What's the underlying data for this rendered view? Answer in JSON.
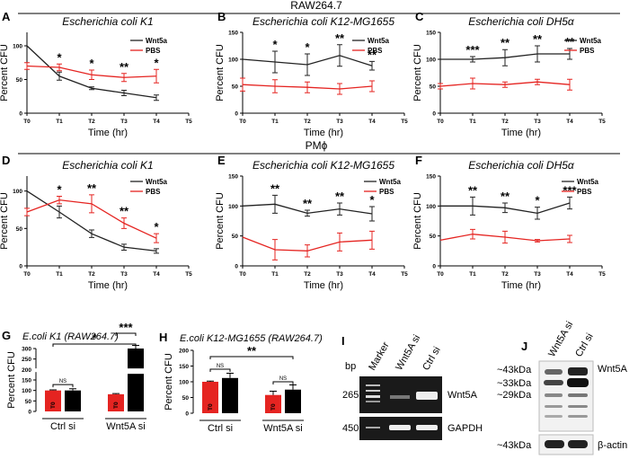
{
  "headers": {
    "raw": "RAW264.7",
    "pm": "PMϕ"
  },
  "line_panels": [
    {
      "letter": "A",
      "title": "Escherichia coli K1",
      "strain": "E. coli K1",
      "cell": "RAW264.7",
      "legend": [
        "Wnt5a",
        "PBS"
      ],
      "xlabel": "Time (hr)",
      "ylabel": "Percent CFU",
      "xticks": [
        "T0",
        "T1",
        "T2",
        "T3",
        "T4",
        "T5"
      ],
      "yticks": [
        "0",
        "50",
        "100"
      ],
      "ylim": [
        0,
        120
      ],
      "wnt": [
        100,
        55,
        37,
        30,
        23
      ],
      "wnt_err": [
        0,
        6,
        2,
        4,
        4
      ],
      "pbs": [
        70,
        68,
        57,
        53,
        55
      ],
      "pbs_err": [
        5,
        5,
        7,
        6,
        10
      ],
      "stars": [
        {
          "i": 1,
          "t": "*"
        },
        {
          "i": 2,
          "t": "*"
        },
        {
          "i": 3,
          "t": "**"
        },
        {
          "i": 4,
          "t": "*"
        }
      ]
    },
    {
      "letter": "B",
      "title": "Escherichia coli K12-MG1655",
      "strain": "E. coli K12-MG1655",
      "cell": "RAW264.7",
      "legend": [
        "Wnt5a",
        "PBS"
      ],
      "xlabel": "Time (hr)",
      "ylabel": "Percent CFU",
      "xticks": [
        "T0",
        "T1",
        "T2",
        "T3",
        "T4",
        "T5"
      ],
      "yticks": [
        "0",
        "50",
        "100",
        "150"
      ],
      "ylim": [
        0,
        150
      ],
      "wnt": [
        100,
        95,
        90,
        107,
        88
      ],
      "wnt_err": [
        0,
        20,
        20,
        20,
        8
      ],
      "pbs": [
        53,
        50,
        48,
        45,
        50
      ],
      "pbs_err": [
        12,
        12,
        10,
        10,
        10
      ],
      "stars": [
        {
          "i": 1,
          "t": "*"
        },
        {
          "i": 2,
          "t": "*"
        },
        {
          "i": 3,
          "t": "**"
        },
        {
          "i": 4,
          "t": "**"
        }
      ]
    },
    {
      "letter": "C",
      "title": "Escherichia coli DH5α",
      "strain": "E. coli DH5α",
      "cell": "RAW264.7",
      "legend": [
        "Wnt5a",
        "PBS"
      ],
      "xlabel": "Time (hr)",
      "ylabel": "Percent CFU",
      "xticks": [
        "T0",
        "T1",
        "T2",
        "T3",
        "T4",
        "T5"
      ],
      "yticks": [
        "0",
        "50",
        "100",
        "150"
      ],
      "ylim": [
        0,
        150
      ],
      "wnt": [
        100,
        100,
        103,
        110,
        110
      ],
      "wnt_err": [
        0,
        5,
        15,
        15,
        10
      ],
      "pbs": [
        50,
        55,
        53,
        58,
        53
      ],
      "pbs_err": [
        5,
        10,
        5,
        5,
        10
      ],
      "stars": [
        {
          "i": 1,
          "t": "***"
        },
        {
          "i": 2,
          "t": "**"
        },
        {
          "i": 3,
          "t": "**"
        },
        {
          "i": 4,
          "t": "**"
        }
      ]
    },
    {
      "letter": "D",
      "title": "Escherichia coli K1",
      "strain": "E. coli K1",
      "cell": "PMϕ",
      "legend": [
        "Wnt5a",
        "PBS"
      ],
      "xlabel": "Time (hr)",
      "ylabel": "Percent CFU",
      "xticks": [
        "T0",
        "T1",
        "T2",
        "T3",
        "T4",
        "T5"
      ],
      "yticks": [
        "0",
        "50",
        "100"
      ],
      "ylim": [
        0,
        120
      ],
      "wnt": [
        100,
        72,
        43,
        25,
        20
      ],
      "wnt_err": [
        0,
        8,
        5,
        4,
        3
      ],
      "pbs": [
        72,
        88,
        83,
        57,
        37
      ],
      "pbs_err": [
        5,
        5,
        12,
        7,
        6
      ],
      "stars": [
        {
          "i": 1,
          "t": "*"
        },
        {
          "i": 2,
          "t": "**"
        },
        {
          "i": 3,
          "t": "**"
        },
        {
          "i": 4,
          "t": "*"
        }
      ]
    },
    {
      "letter": "E",
      "title": "Escherichia coli K12-MG1655",
      "strain": "E. coli K12-MG1655",
      "cell": "PMϕ",
      "legend": [
        "Wnt5a",
        "PBS"
      ],
      "xlabel": "Time (hr)",
      "ylabel": "Percent CFU",
      "xticks": [
        "T0",
        "T1",
        "T2",
        "T3",
        "T4",
        "T5"
      ],
      "yticks": [
        "0",
        "50",
        "100",
        "150"
      ],
      "ylim": [
        0,
        150
      ],
      "wnt": [
        100,
        103,
        88,
        95,
        87
      ],
      "wnt_err": [
        0,
        15,
        5,
        10,
        12
      ],
      "pbs": [
        48,
        27,
        25,
        40,
        43
      ],
      "pbs_err": [
        0,
        17,
        10,
        15,
        15
      ],
      "stars": [
        {
          "i": 1,
          "t": "**"
        },
        {
          "i": 2,
          "t": "**"
        },
        {
          "i": 3,
          "t": "**"
        },
        {
          "i": 4,
          "t": "*"
        }
      ]
    },
    {
      "letter": "F",
      "title": "Escherichia coli DH5α",
      "strain": "E. coli DH5α",
      "cell": "PMϕ",
      "legend": [
        "Wnt5a",
        "PBS"
      ],
      "xlabel": "Time (hr)",
      "ylabel": "Percent CFU",
      "xticks": [
        "T0",
        "T1",
        "T2",
        "T3",
        "T4",
        "T5"
      ],
      "yticks": [
        "0",
        "50",
        "100",
        "150"
      ],
      "ylim": [
        0,
        150
      ],
      "wnt": [
        100,
        100,
        97,
        88,
        105
      ],
      "wnt_err": [
        0,
        15,
        8,
        10,
        10
      ],
      "pbs": [
        43,
        53,
        48,
        42,
        45
      ],
      "pbs_err": [
        0,
        8,
        10,
        2,
        6
      ],
      "stars": [
        {
          "i": 1,
          "t": "**"
        },
        {
          "i": 2,
          "t": "**"
        },
        {
          "i": 3,
          "t": "*"
        },
        {
          "i": 4,
          "t": "***"
        }
      ]
    }
  ],
  "bar_panels": [
    {
      "letter": "G",
      "title": "E.coli K1 (RAW264.7)",
      "ylabel": "Percent CFU",
      "yticks": [
        "0",
        "50",
        "100",
        "150",
        "200",
        "250",
        "300"
      ],
      "ylim": [
        0,
        300
      ],
      "broken_axis": true,
      "groups": [
        "Ctrl si",
        "Wnt5A si"
      ],
      "bar_labels": [
        "T0",
        "T3",
        "T0",
        "T3"
      ],
      "values": [
        100,
        100,
        82,
        300
      ],
      "errors": [
        3,
        8,
        3,
        15
      ],
      "ns": "NS",
      "inter_sig": "*",
      "within_sig": "***"
    },
    {
      "letter": "H",
      "title": "E.coli K12-MG1655 (RAW264.7)",
      "ylabel": "Percent CFU",
      "yticks": [
        "0",
        "50",
        "100",
        "150",
        "200"
      ],
      "ylim": [
        0,
        200
      ],
      "broken_axis": false,
      "groups": [
        "Ctrl si",
        "Wnt5A si"
      ],
      "bar_labels": [
        "T0",
        "T3",
        "T0",
        "T3"
      ],
      "values": [
        100,
        112,
        58,
        75
      ],
      "errors": [
        2,
        15,
        12,
        15
      ],
      "ns": [
        "NS",
        "NS"
      ],
      "inter_sig": "**"
    }
  ],
  "chart_data": [
    {
      "type": "line",
      "panel": "A",
      "title": "Escherichia coli K1",
      "xlabel": "Time (hr)",
      "ylabel": "Percent CFU",
      "ylim": [
        0,
        120
      ],
      "series": [
        {
          "name": "Wnt5a",
          "values": [
            100,
            55,
            37,
            30,
            23
          ]
        },
        {
          "name": "PBS",
          "values": [
            70,
            68,
            57,
            53,
            55
          ]
        }
      ],
      "categories": [
        "T0",
        "T1",
        "T2",
        "T3",
        "T4"
      ]
    },
    {
      "type": "line",
      "panel": "B",
      "title": "Escherichia coli K12-MG1655",
      "xlabel": "Time (hr)",
      "ylabel": "Percent CFU",
      "ylim": [
        0,
        150
      ],
      "series": [
        {
          "name": "Wnt5a",
          "values": [
            100,
            95,
            90,
            107,
            88
          ]
        },
        {
          "name": "PBS",
          "values": [
            53,
            50,
            48,
            45,
            50
          ]
        }
      ],
      "categories": [
        "T0",
        "T1",
        "T2",
        "T3",
        "T4"
      ]
    },
    {
      "type": "line",
      "panel": "C",
      "title": "Escherichia coli DH5α",
      "xlabel": "Time (hr)",
      "ylabel": "Percent CFU",
      "ylim": [
        0,
        150
      ],
      "series": [
        {
          "name": "Wnt5a",
          "values": [
            100,
            100,
            103,
            110,
            110
          ]
        },
        {
          "name": "PBS",
          "values": [
            50,
            55,
            53,
            58,
            53
          ]
        }
      ],
      "categories": [
        "T0",
        "T1",
        "T2",
        "T3",
        "T4"
      ]
    },
    {
      "type": "line",
      "panel": "D",
      "title": "Escherichia coli K1",
      "xlabel": "Time (hr)",
      "ylabel": "Percent CFU",
      "ylim": [
        0,
        120
      ],
      "series": [
        {
          "name": "Wnt5a",
          "values": [
            100,
            72,
            43,
            25,
            20
          ]
        },
        {
          "name": "PBS",
          "values": [
            72,
            88,
            83,
            57,
            37
          ]
        }
      ],
      "categories": [
        "T0",
        "T1",
        "T2",
        "T3",
        "T4"
      ]
    },
    {
      "type": "line",
      "panel": "E",
      "title": "Escherichia coli K12-MG1655",
      "xlabel": "Time (hr)",
      "ylabel": "Percent CFU",
      "ylim": [
        0,
        150
      ],
      "series": [
        {
          "name": "Wnt5a",
          "values": [
            100,
            103,
            88,
            95,
            87
          ]
        },
        {
          "name": "PBS",
          "values": [
            48,
            27,
            25,
            40,
            43
          ]
        }
      ],
      "categories": [
        "T0",
        "T1",
        "T2",
        "T3",
        "T4"
      ]
    },
    {
      "type": "line",
      "panel": "F",
      "title": "Escherichia coli DH5α",
      "xlabel": "Time (hr)",
      "ylabel": "Percent CFU",
      "ylim": [
        0,
        150
      ],
      "series": [
        {
          "name": "Wnt5a",
          "values": [
            100,
            100,
            97,
            88,
            105
          ]
        },
        {
          "name": "PBS",
          "values": [
            43,
            53,
            48,
            42,
            45
          ]
        }
      ],
      "categories": [
        "T0",
        "T1",
        "T2",
        "T3",
        "T4"
      ]
    },
    {
      "type": "bar",
      "panel": "G",
      "title": "E.coli K1 (RAW264.7)",
      "ylabel": "Percent CFU",
      "categories": [
        "Ctrl si T0",
        "Ctrl si T3",
        "Wnt5A si T0",
        "Wnt5A si T3"
      ],
      "values": [
        100,
        100,
        82,
        300
      ]
    },
    {
      "type": "bar",
      "panel": "H",
      "title": "E.coli K12-MG1655 (RAW264.7)",
      "ylabel": "Percent CFU",
      "categories": [
        "Ctrl si T0",
        "Ctrl si T3",
        "Wnt5A si T0",
        "Wnt5A si T3"
      ],
      "values": [
        100,
        112,
        58,
        75
      ]
    }
  ],
  "gel_i": {
    "letter": "I",
    "bp_label": "bp",
    "lanes": [
      "Marker",
      "Wnt5A si",
      "Ctrl si"
    ],
    "sizes": [
      "265",
      "450"
    ],
    "targets": [
      "Wnt5A",
      "GAPDH"
    ]
  },
  "gel_j": {
    "letter": "J",
    "lanes": [
      "Wnt5A si",
      "Ctrl si"
    ],
    "markers": [
      "~43kDa",
      "~33kDa",
      "~29kDa",
      "~43kDa"
    ],
    "targets": [
      "Wnt5A",
      "β-actin"
    ]
  },
  "colors": {
    "wnt": "#222222",
    "pbs": "#e52421",
    "red_bar": "#e52421",
    "black_bar": "#000000"
  }
}
